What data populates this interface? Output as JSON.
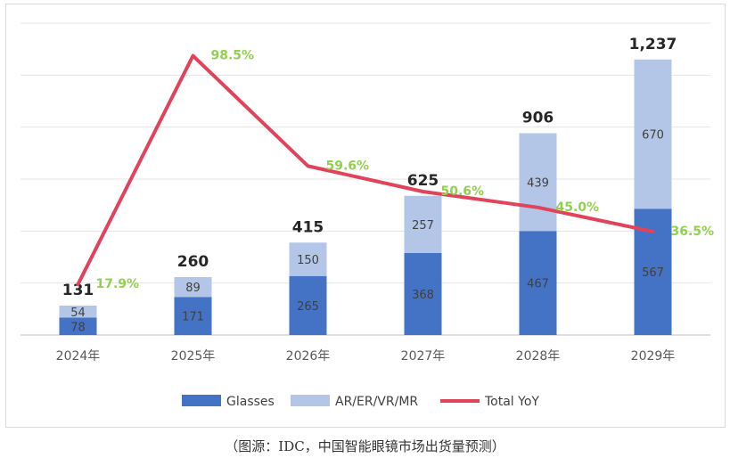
{
  "chart_data": {
    "type": "bar",
    "stacked": true,
    "categories": [
      "2024年",
      "2025年",
      "2026年",
      "2027年",
      "2028年",
      "2029年"
    ],
    "series": [
      {
        "name": "Glasses",
        "type": "bar",
        "color": "#4472c4",
        "values": [
          78,
          171,
          265,
          368,
          467,
          567
        ]
      },
      {
        "name": "AR/ER/VR/MR",
        "type": "bar",
        "color": "#b4c6e7",
        "values": [
          54,
          89,
          150,
          257,
          439,
          670
        ]
      },
      {
        "name": "Total YoY",
        "type": "line",
        "color": "#e0435a",
        "values": [
          17.9,
          98.5,
          59.6,
          50.6,
          45.0,
          36.5
        ],
        "axis": "secondary"
      }
    ],
    "totals": [
      "131",
      "260",
      "415",
      "625",
      "906",
      "1,237"
    ],
    "yoy_labels": [
      "17.9%",
      "98.5%",
      "59.6%",
      "50.6%",
      "45.0%",
      "36.5%"
    ],
    "bar_axis_range": [
      0,
      1400
    ],
    "yoy_axis_range": [
      0,
      110
    ],
    "grid": true,
    "legend_position": "bottom",
    "title": "",
    "xlabel": "",
    "ylabel": ""
  },
  "caption": "（图源：IDC，中国智能眼镜市场出货量预测）"
}
